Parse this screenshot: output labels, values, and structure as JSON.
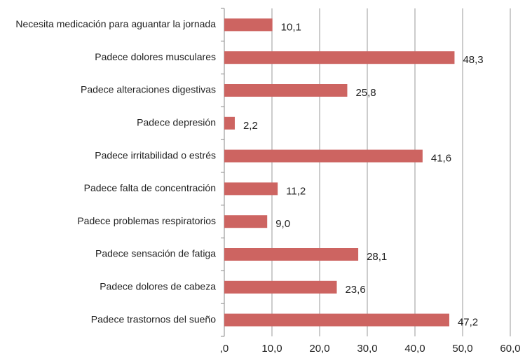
{
  "chart_data": {
    "type": "hbar",
    "categories": [
      "Necesita medicación para aguantar la jornada",
      "Padece dolores musculares",
      "Padece alteraciones digestivas",
      "Padece depresión",
      "Padece irritabilidad o estrés",
      "Padece falta de concentración",
      "Padece problemas respiratorios",
      "Padece sensación de fatiga",
      "Padece dolores de cabeza",
      "Padece trastornos del sueño"
    ],
    "values": [
      10.1,
      48.3,
      25.8,
      2.2,
      41.6,
      11.2,
      9.0,
      28.1,
      23.6,
      47.2
    ],
    "value_labels": [
      "10,1",
      "48,3",
      "25,8",
      "2,2",
      "41,6",
      "11,2",
      "9,0",
      "28,1",
      "23,6",
      "47,2"
    ],
    "color": "#cd6461",
    "xlim": [
      0,
      60
    ],
    "xticks": [
      {
        "value": 0,
        "label": ",0"
      },
      {
        "value": 10,
        "label": "10,0"
      },
      {
        "value": 20,
        "label": "20,0"
      },
      {
        "value": 30,
        "label": "30,0"
      },
      {
        "value": 40,
        "label": "40,0"
      },
      {
        "value": 50,
        "label": "50,0"
      },
      {
        "value": 60,
        "label": "60,0"
      }
    ],
    "grid": true
  }
}
